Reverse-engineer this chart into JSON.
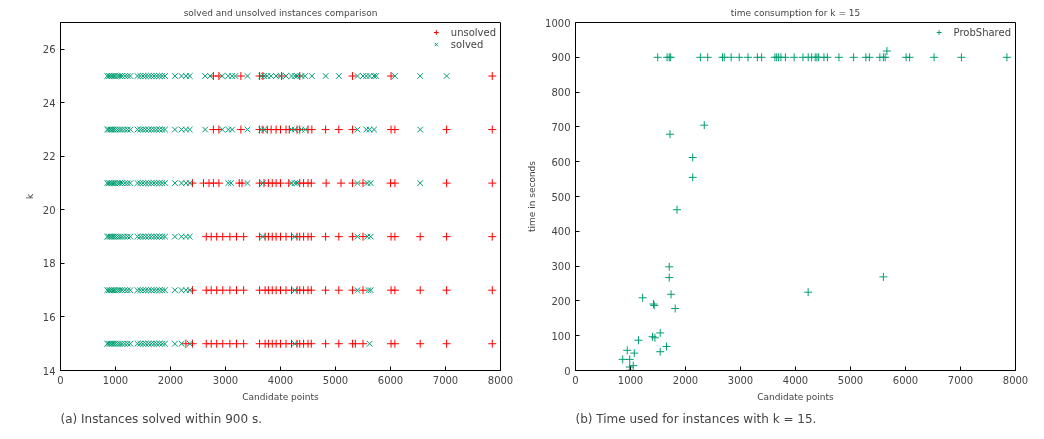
{
  "chart_data": [
    {
      "type": "scatter",
      "title": "solved and unsolved instances comparison",
      "xlabel": "Candidate points",
      "ylabel": "k",
      "xlim": [
        0,
        8000
      ],
      "xticks": [
        0,
        1000,
        2000,
        3000,
        4000,
        5000,
        6000,
        7000,
        8000
      ],
      "ylim": [
        14,
        27
      ],
      "yticks": [
        14,
        16,
        18,
        20,
        22,
        24,
        26
      ],
      "grid": false,
      "legend": "top right",
      "annotations": [
        "(a) Instances solved within 900 s."
      ],
      "series": [
        {
          "name": "unsolved",
          "color": "#ff0000",
          "marker": "cross",
          "x": [
            2780,
            2880,
            3280,
            3620,
            3680,
            4020,
            4350,
            5310,
            6010,
            7850,
            2780,
            2880,
            3280,
            3620,
            3680,
            3760,
            3830,
            3920,
            4000,
            4100,
            4160,
            4300,
            4350,
            4500,
            4570,
            4820,
            5060,
            5310,
            6010,
            6080,
            7020,
            7850,
            2400,
            2600,
            2700,
            2780,
            2880,
            3250,
            3300,
            3620,
            3700,
            3780,
            3850,
            3920,
            4000,
            4150,
            4350,
            4420,
            4500,
            4560,
            4830,
            5100,
            5310,
            5500,
            6000,
            6080,
            7020,
            7850,
            2650,
            2740,
            2840,
            2950,
            3080,
            3200,
            3330,
            3620,
            3720,
            3780,
            3850,
            3920,
            4000,
            4100,
            4200,
            4300,
            4350,
            4420,
            4500,
            4560,
            4820,
            5060,
            5310,
            5500,
            6010,
            6080,
            6540,
            7020,
            7850,
            2400,
            2650,
            2740,
            2840,
            2950,
            3080,
            3200,
            3330,
            3620,
            3720,
            3780,
            3850,
            3920,
            4000,
            4100,
            4200,
            4300,
            4350,
            4420,
            4500,
            4560,
            4820,
            5060,
            5310,
            5500,
            6010,
            6080,
            6540,
            7020,
            7850,
            2280,
            2400,
            2650,
            2740,
            2840,
            2950,
            3080,
            3200,
            3330,
            3620,
            3720,
            3780,
            3850,
            3920,
            4000,
            4100,
            4200,
            4300,
            4350,
            4420,
            4500,
            4560,
            4820,
            5060,
            5310,
            5360,
            5500,
            6010,
            6080,
            6540,
            7020,
            7850
          ],
          "values": [
            25,
            25,
            25,
            25,
            25,
            25,
            25,
            25,
            25,
            25,
            23,
            23,
            23,
            23,
            23,
            23,
            23,
            23,
            23,
            23,
            23,
            23,
            23,
            23,
            23,
            23,
            23,
            23,
            23,
            23,
            23,
            23,
            21,
            21,
            21,
            21,
            21,
            21,
            21,
            21,
            21,
            21,
            21,
            21,
            21,
            21,
            21,
            21,
            21,
            21,
            21,
            21,
            21,
            21,
            21,
            21,
            21,
            21,
            19,
            19,
            19,
            19,
            19,
            19,
            19,
            19,
            19,
            19,
            19,
            19,
            19,
            19,
            19,
            19,
            19,
            19,
            19,
            19,
            19,
            19,
            19,
            19,
            19,
            19,
            19,
            19,
            19,
            17,
            17,
            17,
            17,
            17,
            17,
            17,
            17,
            17,
            17,
            17,
            17,
            17,
            17,
            17,
            17,
            17,
            17,
            17,
            17,
            17,
            17,
            17,
            17,
            17,
            17,
            17,
            17,
            17,
            17,
            15,
            15,
            15,
            15,
            15,
            15,
            15,
            15,
            15,
            15,
            15,
            15,
            15,
            15,
            15,
            15,
            15,
            15,
            15,
            15,
            15,
            15,
            15,
            15,
            15,
            15,
            15,
            15,
            15,
            15,
            15,
            15
          ]
        },
        {
          "name": "solved",
          "color": "#009e73",
          "marker": "x",
          "x": [
            850,
            880,
            910,
            940,
            970,
            1000,
            1040,
            1080,
            1120,
            1170,
            1220,
            1270,
            1400,
            1450,
            1500,
            1550,
            1600,
            1650,
            1700,
            1750,
            1800,
            1850,
            1900,
            2080,
            2200,
            2280,
            2350,
            2630,
            2720,
            2940,
            3050,
            3120,
            3180,
            3400,
            3650,
            3700,
            3760,
            3830,
            3920,
            4000,
            4100,
            4200,
            4260,
            4300,
            4380,
            4450,
            4570,
            4820,
            5060,
            5400,
            5500,
            5560,
            5620,
            5700,
            5740,
            6080,
            6540,
            7020,
            850,
            880,
            910,
            940,
            970,
            1000,
            1040,
            1080,
            1120,
            1170,
            1220,
            1270,
            1400,
            1450,
            1500,
            1550,
            1600,
            1650,
            1700,
            1750,
            1800,
            1850,
            1900,
            2080,
            2200,
            2280,
            2350,
            2630,
            2940,
            3050,
            3120,
            3400,
            3650,
            3700,
            4200,
            4260,
            4380,
            4450,
            5400,
            5560,
            5620,
            5700,
            6540,
            850,
            880,
            910,
            940,
            970,
            1000,
            1040,
            1080,
            1120,
            1170,
            1220,
            1270,
            1400,
            1450,
            1500,
            1550,
            1600,
            1650,
            1700,
            1750,
            1800,
            1850,
            1900,
            2080,
            2200,
            2280,
            2350,
            3050,
            3100,
            3400,
            3680,
            4200,
            4260,
            4300,
            5400,
            5580,
            5640,
            6540,
            850,
            880,
            910,
            940,
            970,
            1000,
            1040,
            1080,
            1120,
            1170,
            1220,
            1270,
            1400,
            1450,
            1500,
            1550,
            1600,
            1650,
            1700,
            1750,
            1800,
            1850,
            1900,
            2080,
            2200,
            2280,
            2350,
            3680,
            4260,
            5400,
            5580,
            5640,
            850,
            880,
            910,
            940,
            970,
            1000,
            1040,
            1080,
            1120,
            1170,
            1220,
            1270,
            1400,
            1450,
            1500,
            1550,
            1600,
            1650,
            1700,
            1750,
            1800,
            1850,
            1900,
            2080,
            2200,
            2280,
            2350,
            4260,
            5400,
            5600,
            5640,
            850,
            880,
            910,
            940,
            970,
            1000,
            1040,
            1080,
            1120,
            1170,
            1220,
            1270,
            1400,
            1450,
            1500,
            1550,
            1600,
            1650,
            1700,
            1750,
            1800,
            1850,
            1900,
            2080,
            2200,
            2350,
            4260,
            5620
          ],
          "values": [
            25,
            25,
            25,
            25,
            25,
            25,
            25,
            25,
            25,
            25,
            25,
            25,
            25,
            25,
            25,
            25,
            25,
            25,
            25,
            25,
            25,
            25,
            25,
            25,
            25,
            25,
            25,
            25,
            25,
            25,
            25,
            25,
            25,
            25,
            25,
            25,
            25,
            25,
            25,
            25,
            25,
            25,
            25,
            25,
            25,
            25,
            25,
            25,
            25,
            25,
            25,
            25,
            25,
            25,
            25,
            25,
            25,
            25,
            23,
            23,
            23,
            23,
            23,
            23,
            23,
            23,
            23,
            23,
            23,
            23,
            23,
            23,
            23,
            23,
            23,
            23,
            23,
            23,
            23,
            23,
            23,
            23,
            23,
            23,
            23,
            23,
            23,
            23,
            23,
            23,
            23,
            23,
            23,
            23,
            23,
            23,
            23,
            23,
            23,
            23,
            23,
            21,
            21,
            21,
            21,
            21,
            21,
            21,
            21,
            21,
            21,
            21,
            21,
            21,
            21,
            21,
            21,
            21,
            21,
            21,
            21,
            21,
            21,
            21,
            21,
            21,
            21,
            21,
            21,
            21,
            21,
            21,
            21,
            21,
            21,
            21,
            21,
            21,
            21,
            19,
            19,
            19,
            19,
            19,
            19,
            19,
            19,
            19,
            19,
            19,
            19,
            19,
            19,
            19,
            19,
            19,
            19,
            19,
            19,
            19,
            19,
            19,
            19,
            19,
            19,
            19,
            19,
            19,
            19,
            19,
            19,
            17,
            17,
            17,
            17,
            17,
            17,
            17,
            17,
            17,
            17,
            17,
            17,
            17,
            17,
            17,
            17,
            17,
            17,
            17,
            17,
            17,
            17,
            17,
            17,
            17,
            17,
            17,
            17,
            17,
            17,
            17,
            15,
            15,
            15,
            15,
            15,
            15,
            15,
            15,
            15,
            15,
            15,
            15,
            15,
            15,
            15,
            15,
            15,
            15,
            15,
            15,
            15,
            15,
            15,
            15,
            15,
            15,
            15,
            15
          ]
        }
      ]
    },
    {
      "type": "scatter",
      "title": "time consumption for k = 15",
      "xlabel": "Candidate points",
      "ylabel": "time in seconds",
      "xlim": [
        0,
        8000
      ],
      "xticks": [
        0,
        1000,
        2000,
        3000,
        4000,
        5000,
        6000,
        7000,
        8000
      ],
      "ylim": [
        0,
        1000
      ],
      "yticks": [
        0,
        100,
        200,
        300,
        400,
        500,
        600,
        700,
        800,
        900,
        1000
      ],
      "grid": false,
      "legend": "top right",
      "annotations": [
        "(b) Time used for instances with k = 15."
      ],
      "series": [
        {
          "name": "ProbShared",
          "color": "#009e73",
          "marker": "cross",
          "x": [
            1495,
            1666,
            1704,
            1730,
            2271,
            2404,
            2672,
            2704,
            2830,
            2977,
            3136,
            3307,
            3384,
            3626,
            3658,
            3689,
            3734,
            3817,
            3976,
            4136,
            4231,
            4294,
            4358,
            4389,
            4421,
            4517,
            4580,
            4790,
            5057,
            5280,
            5343,
            5534,
            5598,
            5630,
            5662,
            6011,
            6075,
            6520,
            7017,
            7844,
            2131,
            1845,
            1704,
            1704,
            1737,
            1813,
            1221,
            1418,
            1431,
            1444,
            1400,
            1540,
            1145,
            1654,
            1540,
            941,
            1069,
            859,
            986,
            1050,
            986,
            998,
            4230,
            5598,
            1718,
            2341,
            2131
          ],
          "values": [
            900,
            900,
            900,
            900,
            900,
            900,
            900,
            900,
            900,
            900,
            900,
            900,
            900,
            900,
            900,
            900,
            900,
            900,
            900,
            900,
            900,
            900,
            900,
            900,
            900,
            900,
            900,
            900,
            900,
            900,
            900,
            900,
            900,
            900,
            918,
            900,
            900,
            900,
            900,
            900,
            555,
            462,
            298,
            267,
            219,
            178,
            209,
            191,
            187,
            94,
            97,
            108,
            87,
            69,
            54,
            58,
            50,
            32,
            32,
            14,
            10,
            1,
            225,
            269,
            679,
            705,
            612
          ]
        }
      ]
    }
  ]
}
